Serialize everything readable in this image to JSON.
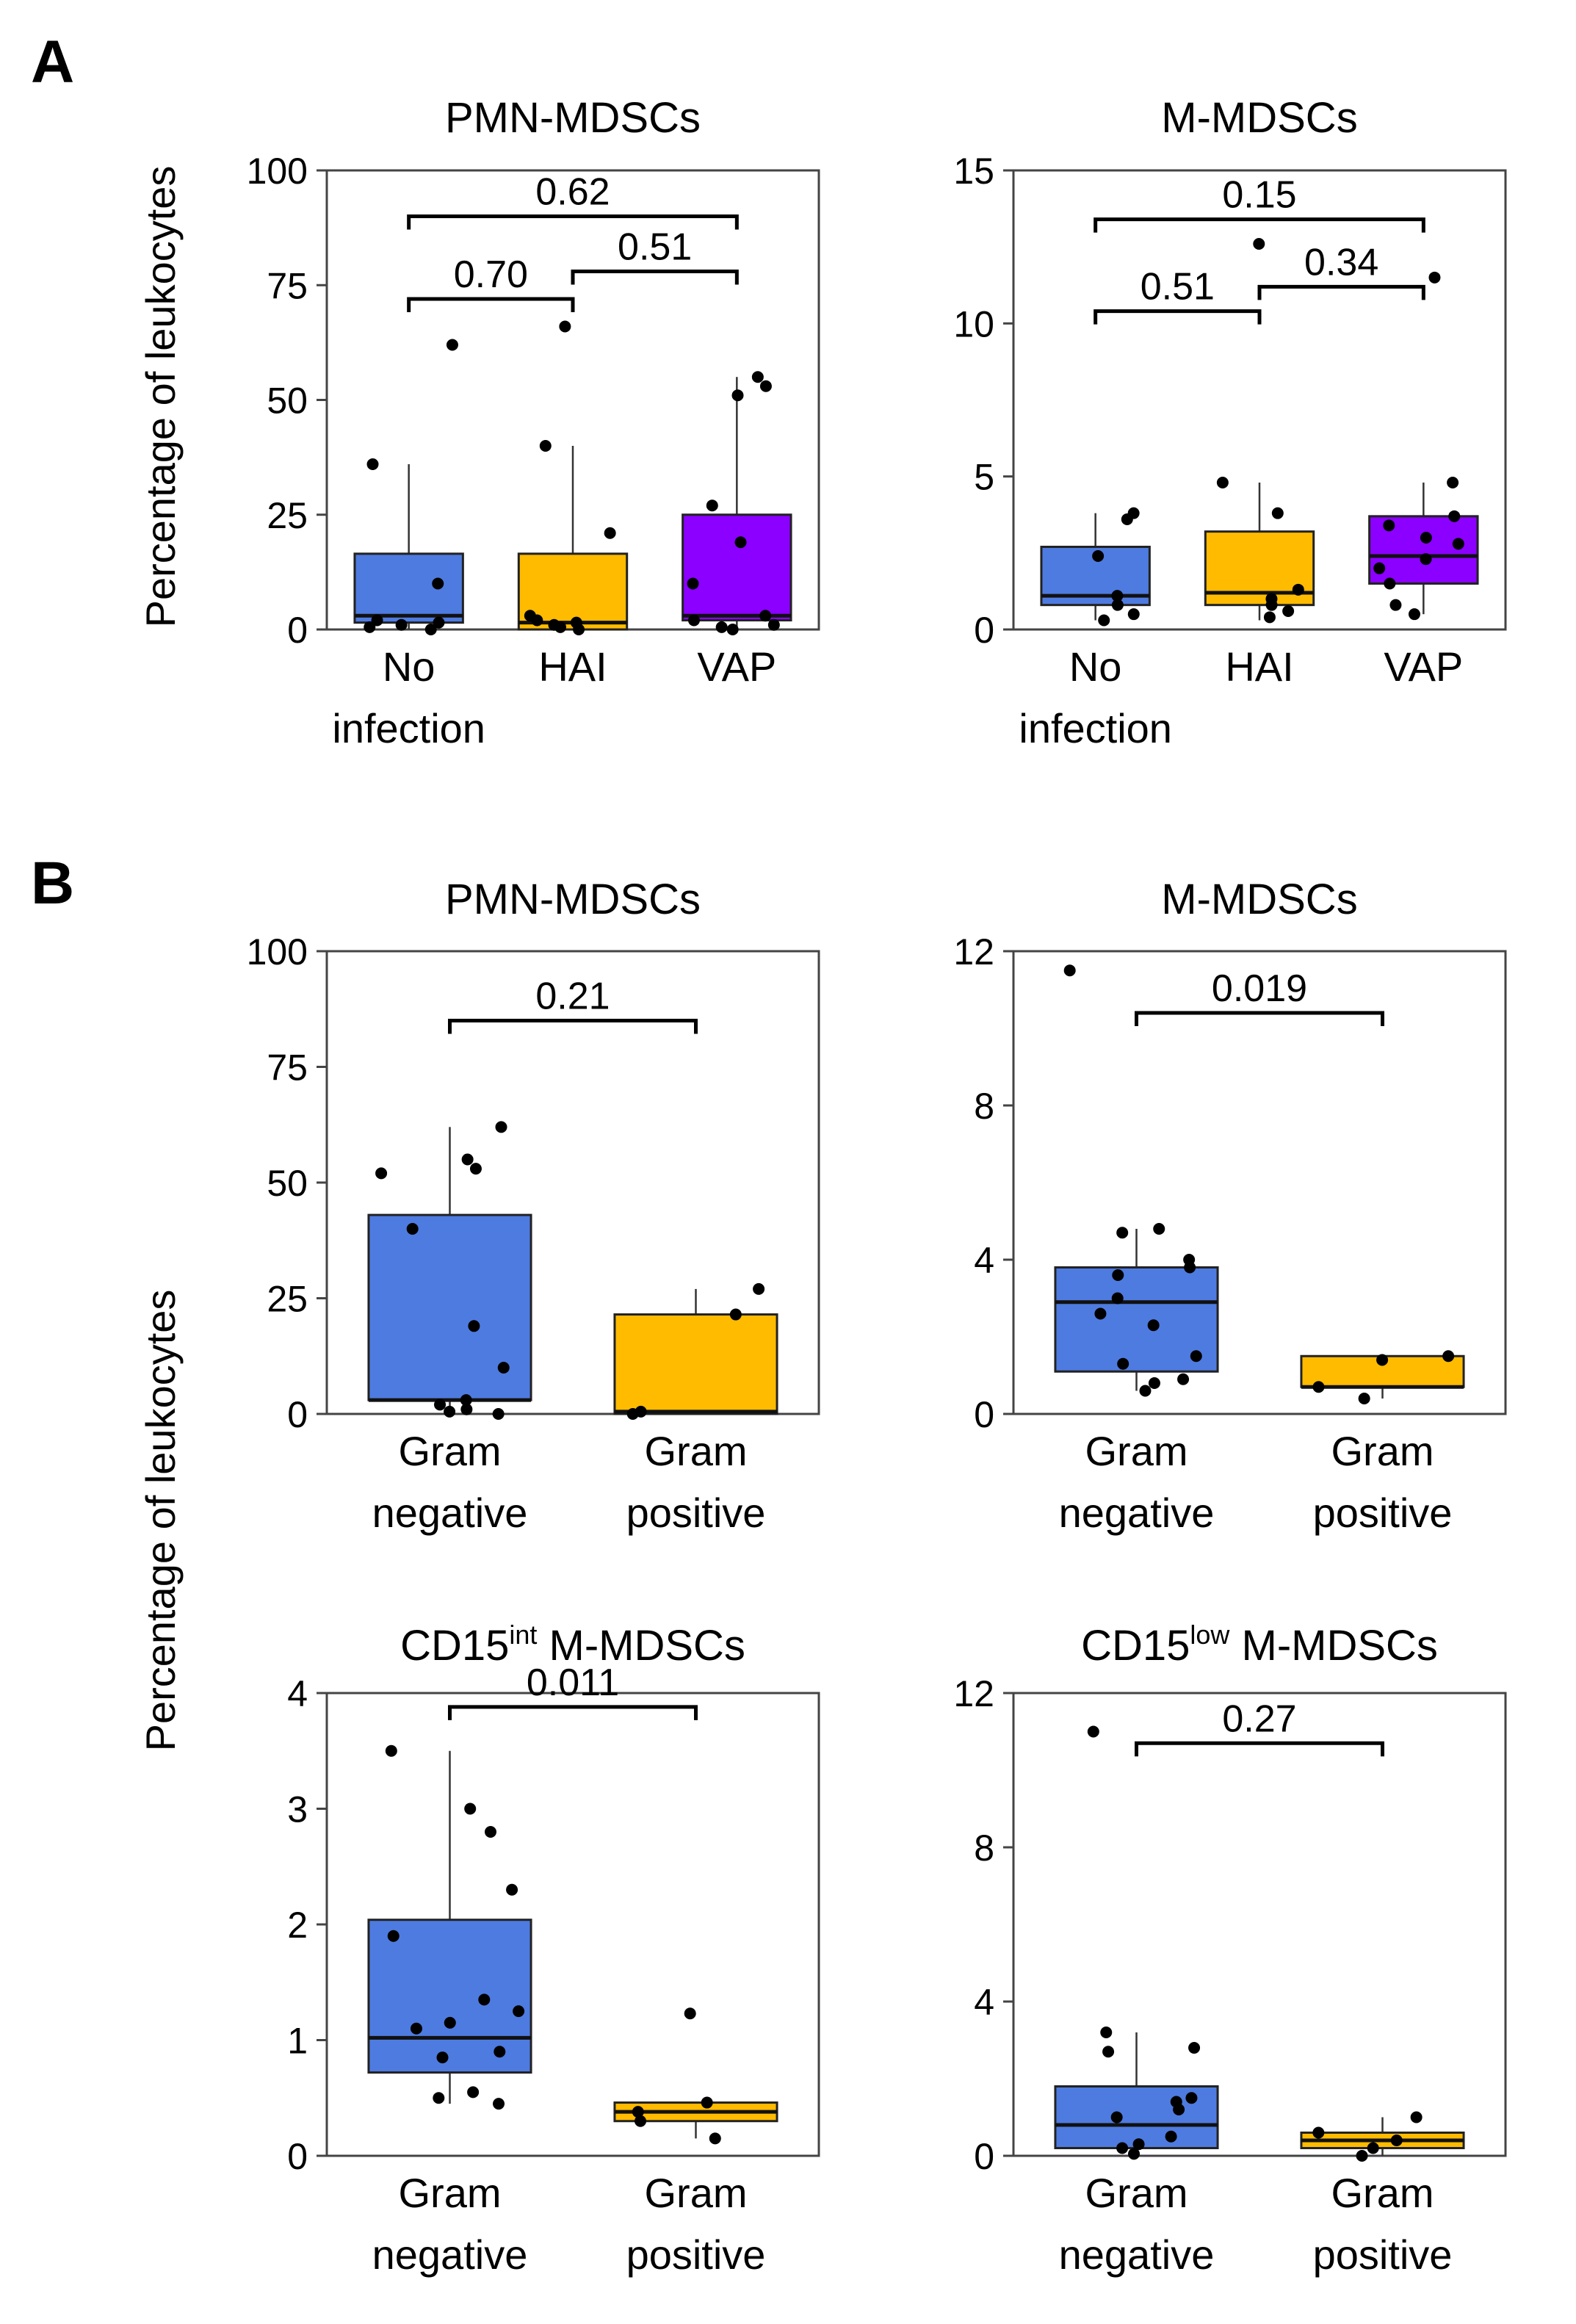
{
  "panel_labels": {
    "a": "A",
    "b": "B"
  },
  "ylabel_shared": "Percentage of leukocytes",
  "colors": {
    "no_infection": "#4e7be0",
    "hai": "#ffbb00",
    "vap": "#8b00ff",
    "gram_negative": "#4e7be0",
    "gram_positive": "#ffbb00",
    "point": "#000000",
    "frame": "#444444"
  },
  "chart_data": [
    {
      "id": "a1",
      "panel": "A",
      "type": "box",
      "title": "PMN-MDSCs",
      "title_sup": "",
      "title_suffix": "",
      "ylabel": "Percentage of leukocytes",
      "ylim": [
        0,
        100
      ],
      "yticks": [
        0,
        25,
        50,
        75,
        100
      ],
      "categories": [
        [
          "No",
          "infection"
        ],
        [
          "HAI"
        ],
        [
          "VAP"
        ]
      ],
      "box_colors": [
        "#4e7be0",
        "#ffbb00",
        "#8b00ff"
      ],
      "boxes": [
        {
          "whislo": 0,
          "q1": 1.5,
          "med": 3,
          "q3": 16.5,
          "whishi": 36,
          "points": [
            0,
            0.5,
            1,
            1.5,
            2,
            10,
            36,
            62
          ]
        },
        {
          "whislo": 0,
          "q1": 0,
          "med": 1.5,
          "q3": 16.5,
          "whishi": 40,
          "points": [
            0,
            0.5,
            1,
            1.5,
            2,
            3,
            21,
            40,
            66
          ]
        },
        {
          "whislo": 0,
          "q1": 2,
          "med": 3,
          "q3": 25,
          "whishi": 55,
          "points": [
            0,
            0.5,
            1,
            2,
            3,
            10,
            19,
            27,
            51,
            53,
            55
          ]
        }
      ],
      "comparisons": [
        {
          "from": 0,
          "to": 1,
          "label": "0.70",
          "y": 72
        },
        {
          "from": 1,
          "to": 2,
          "label": "0.51",
          "y": 78
        },
        {
          "from": 0,
          "to": 2,
          "label": "0.62",
          "y": 90
        }
      ]
    },
    {
      "id": "a2",
      "panel": "A",
      "type": "box",
      "title": "M-MDSCs",
      "title_sup": "",
      "title_suffix": "",
      "ylabel": "",
      "ylim": [
        0,
        15
      ],
      "yticks": [
        0,
        5,
        10,
        15
      ],
      "categories": [
        [
          "No",
          "infection"
        ],
        [
          "HAI"
        ],
        [
          "VAP"
        ]
      ],
      "box_colors": [
        "#4e7be0",
        "#ffbb00",
        "#8b00ff"
      ],
      "boxes": [
        {
          "whislo": 0.3,
          "q1": 0.8,
          "med": 1.1,
          "q3": 2.7,
          "whishi": 3.8,
          "points": [
            0.3,
            0.5,
            0.8,
            1.1,
            2.4,
            3.6,
            3.8
          ]
        },
        {
          "whislo": 0.3,
          "q1": 0.8,
          "med": 1.2,
          "q3": 3.2,
          "whishi": 4.8,
          "points": [
            0.4,
            0.6,
            0.8,
            1.0,
            1.3,
            3.8,
            4.8,
            12.6
          ]
        },
        {
          "whislo": 0.5,
          "q1": 1.5,
          "med": 2.4,
          "q3": 3.7,
          "whishi": 4.8,
          "points": [
            0.5,
            0.8,
            1.5,
            2.0,
            2.3,
            2.8,
            3.0,
            3.4,
            3.7,
            4.8,
            11.5
          ]
        }
      ],
      "comparisons": [
        {
          "from": 0,
          "to": 1,
          "label": "0.51",
          "y": 10.4
        },
        {
          "from": 1,
          "to": 2,
          "label": "0.34",
          "y": 11.2
        },
        {
          "from": 0,
          "to": 2,
          "label": "0.15",
          "y": 13.4
        }
      ]
    },
    {
      "id": "b1",
      "panel": "B",
      "type": "box",
      "title": "PMN-MDSCs",
      "title_sup": "",
      "title_suffix": "",
      "ylabel": "",
      "ylim": [
        0,
        100
      ],
      "yticks": [
        0,
        25,
        50,
        75,
        100
      ],
      "categories": [
        [
          "Gram",
          "negative"
        ],
        [
          "Gram",
          "positive"
        ]
      ],
      "box_colors": [
        "#4e7be0",
        "#ffbb00"
      ],
      "boxes": [
        {
          "whislo": 0,
          "q1": 3,
          "med": 3,
          "q3": 43,
          "whishi": 62,
          "points": [
            0,
            0.5,
            1,
            2,
            3,
            10,
            19,
            40,
            52,
            53,
            55,
            62
          ]
        },
        {
          "whislo": 0,
          "q1": 0,
          "med": 0.5,
          "q3": 21.5,
          "whishi": 27,
          "points": [
            0,
            0.5,
            21.5,
            27
          ]
        }
      ],
      "comparisons": [
        {
          "from": 0,
          "to": 1,
          "label": "0.21",
          "y": 85
        }
      ]
    },
    {
      "id": "b2",
      "panel": "B",
      "type": "box",
      "title": "M-MDSCs",
      "title_sup": "",
      "title_suffix": "",
      "ylabel": "",
      "ylim": [
        0,
        12
      ],
      "yticks": [
        0,
        4,
        8,
        12
      ],
      "categories": [
        [
          "Gram",
          "negative"
        ],
        [
          "Gram",
          "positive"
        ]
      ],
      "box_colors": [
        "#4e7be0",
        "#ffbb00"
      ],
      "boxes": [
        {
          "whislo": 0.6,
          "q1": 1.1,
          "med": 2.9,
          "q3": 3.8,
          "whishi": 4.8,
          "points": [
            0.6,
            0.8,
            0.9,
            1.3,
            1.5,
            2.3,
            2.6,
            3.0,
            3.6,
            3.8,
            4.0,
            4.7,
            4.8,
            11.5
          ]
        },
        {
          "whislo": 0.4,
          "q1": 0.7,
          "med": 0.7,
          "q3": 1.5,
          "whishi": 1.5,
          "points": [
            0.4,
            0.7,
            1.4,
            1.5
          ]
        }
      ],
      "comparisons": [
        {
          "from": 0,
          "to": 1,
          "label": "0.019",
          "y": 10.4
        }
      ]
    },
    {
      "id": "b3",
      "panel": "B",
      "type": "box",
      "title": "CD15",
      "title_sup": "int",
      "title_suffix": " M-MDSCs",
      "ylabel": "",
      "ylim": [
        0,
        4
      ],
      "yticks": [
        0,
        1,
        2,
        3,
        4
      ],
      "categories": [
        [
          "Gram",
          "negative"
        ],
        [
          "Gram",
          "positive"
        ]
      ],
      "box_colors": [
        "#4e7be0",
        "#ffbb00"
      ],
      "boxes": [
        {
          "whislo": 0.45,
          "q1": 0.72,
          "med": 1.02,
          "q3": 2.04,
          "whishi": 3.5,
          "points": [
            0.45,
            0.5,
            0.55,
            0.85,
            0.9,
            1.1,
            1.15,
            1.25,
            1.35,
            1.9,
            2.3,
            2.8,
            3.0,
            3.5
          ]
        },
        {
          "whislo": 0.15,
          "q1": 0.3,
          "med": 0.38,
          "q3": 0.46,
          "whishi": 0.46,
          "points": [
            0.15,
            0.3,
            0.38,
            0.46,
            1.23
          ]
        }
      ],
      "comparisons": [
        {
          "from": 0,
          "to": 1,
          "label": "0.011",
          "y": 3.88
        }
      ]
    },
    {
      "id": "b4",
      "panel": "B",
      "type": "box",
      "title": "CD15",
      "title_sup": "low",
      "title_suffix": " M-MDSCs",
      "ylabel": "",
      "ylim": [
        0,
        12
      ],
      "yticks": [
        0,
        4,
        8,
        12
      ],
      "categories": [
        [
          "Gram",
          "negative"
        ],
        [
          "Gram",
          "positive"
        ]
      ],
      "box_colors": [
        "#4e7be0",
        "#ffbb00"
      ],
      "boxes": [
        {
          "whislo": 0,
          "q1": 0.2,
          "med": 0.8,
          "q3": 1.8,
          "whishi": 3.2,
          "points": [
            0.05,
            0.2,
            0.3,
            0.5,
            1.0,
            1.2,
            1.4,
            1.5,
            2.7,
            2.8,
            3.2,
            11.0
          ]
        },
        {
          "whislo": 0,
          "q1": 0.2,
          "med": 0.4,
          "q3": 0.6,
          "whishi": 1.0,
          "points": [
            0.0,
            0.2,
            0.4,
            0.6,
            1.0
          ]
        }
      ],
      "comparisons": [
        {
          "from": 0,
          "to": 1,
          "label": "0.27",
          "y": 10.7
        }
      ]
    }
  ]
}
